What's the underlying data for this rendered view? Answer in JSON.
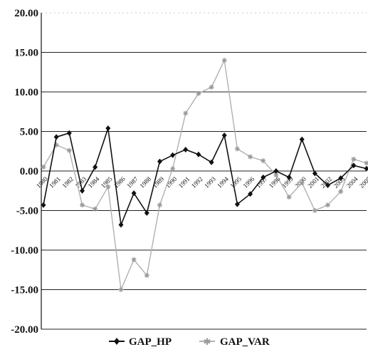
{
  "chart_data": {
    "type": "line",
    "x": [
      "1980",
      "1981",
      "1982",
      "1983",
      "1984",
      "1985",
      "1986",
      "1987",
      "1988",
      "1989",
      "1990",
      "1991",
      "1992",
      "1993",
      "1994",
      "1995",
      "1996",
      "1997",
      "1998",
      "1999",
      "2000",
      "2001",
      "2002",
      "2003",
      "2004",
      "2005"
    ],
    "series": [
      {
        "name": "GAP_HP",
        "color": "#111111",
        "marker": "diamond",
        "values": [
          -4.3,
          4.3,
          4.8,
          -2.5,
          0.5,
          5.4,
          -6.8,
          -2.8,
          -5.3,
          1.2,
          2.0,
          2.7,
          2.1,
          1.1,
          4.5,
          -4.2,
          -2.9,
          -0.8,
          0.0,
          -0.8,
          4.0,
          -0.3,
          -1.8,
          -0.9,
          0.7,
          0.3
        ]
      },
      {
        "name": "GAP_VAR",
        "color": "#b0b0b0",
        "marker": "star",
        "values": [
          0.5,
          3.3,
          2.6,
          -4.3,
          -4.8,
          -2.0,
          -15.0,
          -11.2,
          -13.2,
          -4.3,
          0.3,
          7.3,
          9.8,
          10.6,
          14.0,
          2.8,
          1.8,
          1.3,
          -0.5,
          -3.3,
          -1.5,
          -5.0,
          -4.3,
          -2.6,
          1.5,
          1.0
        ]
      }
    ],
    "ylim": [
      -20,
      20
    ],
    "yticks": [
      "20.00",
      "15.00",
      "10.00",
      "5.00",
      "0.00",
      "-5.00",
      "-10.00",
      "-15.00",
      "-20.00"
    ],
    "xtick_labels": [
      "1980",
      "1981",
      "1982",
      "1983",
      "1984",
      "1985",
      "1986",
      "1987",
      "1988",
      "1989",
      "1990",
      "1991",
      "1992",
      "1993",
      "1994",
      "1995",
      "1996",
      "1997",
      "1998",
      "1999",
      "2000",
      "2001",
      "2002",
      "2003",
      "2004",
      "2005"
    ],
    "grid": true,
    "legend_position": "bottom"
  }
}
